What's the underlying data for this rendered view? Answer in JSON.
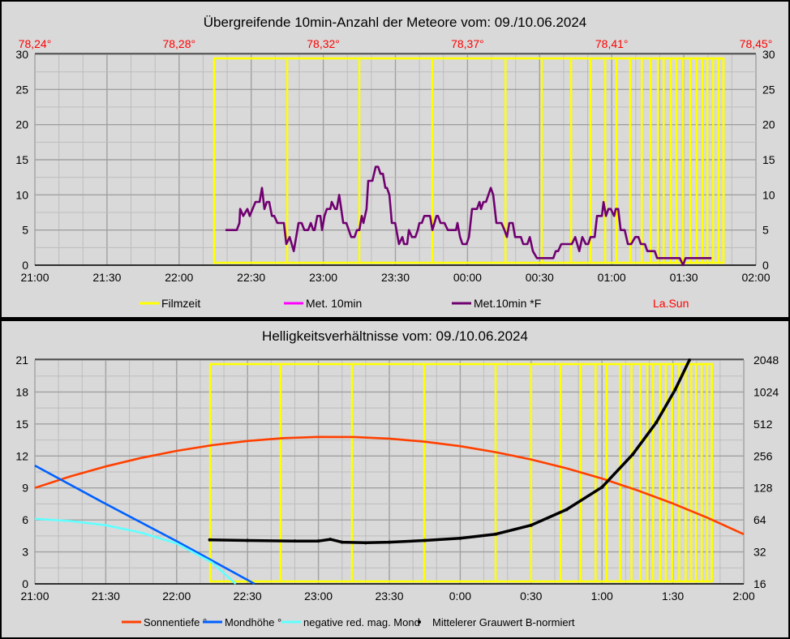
{
  "chart_data": [
    {
      "type": "line",
      "title": "Übergreifende 10min-Anzahl der Meteore vom: 09./10.06.2024",
      "x_unit": "minutes after 21:00",
      "xlim": [
        0,
        300
      ],
      "x_ticks": [
        "21:00",
        "21:30",
        "22:00",
        "22:30",
        "23:00",
        "23:30",
        "00:00",
        "00:30",
        "01:00",
        "01:30",
        "02:00"
      ],
      "top_ticks": [
        "78,24°",
        "78,28°",
        "78,32°",
        "78,37°",
        "78,41°",
        "78,45°"
      ],
      "ylim": [
        0,
        30
      ],
      "y_ticks": [
        "0",
        "5",
        "10",
        "15",
        "20",
        "25",
        "30"
      ],
      "grid": true,
      "legend": {
        "placement": "bottom",
        "items": [
          {
            "label": "Filmzeit",
            "color": "#ffff00"
          },
          {
            "label": "Met. 10min",
            "color": "#ff00ff"
          },
          {
            "label": "Met.10min *F",
            "color": "#700070"
          },
          {
            "label": "La.Sun",
            "color": "#ff0000",
            "text_only": true
          }
        ]
      },
      "film_lines": [
        74.6,
        105.0,
        135.0,
        165.4,
        195.8,
        210.9,
        223.1,
        231.2,
        237.3,
        242.0,
        247.7,
        252.5,
        256.2,
        259.2,
        261.6,
        264.6,
        267.0,
        269.7,
        272.7,
        275.4,
        277.8,
        279.8,
        282.2,
        284.5,
        286.5
      ],
      "series": [
        {
          "name": "Met.10min *F",
          "color": "#700070",
          "t": [
            79.3,
            80.7,
            84.0,
            85.1,
            85.4,
            86.7,
            88.4,
            89.4,
            91.8,
            93.5,
            94.5,
            95.5,
            96.5,
            97.5,
            98.6,
            99.6,
            100.9,
            103.6,
            104.6,
            106.0,
            107.7,
            109.7,
            111.0,
            112.1,
            113.7,
            114.8,
            115.8,
            116.4,
            117.5,
            118.8,
            119.5,
            120.5,
            121.5,
            122.9,
            123.5,
            124.9,
            125.6,
            126.6,
            128.3,
            129.6,
            131.6,
            133.0,
            134.0,
            135.0,
            136.0,
            136.7,
            138.0,
            138.7,
            140.4,
            141.8,
            142.8,
            143.8,
            144.8,
            145.8,
            146.5,
            147.5,
            148.5,
            149.9,
            151.5,
            152.9,
            153.6,
            154.9,
            155.6,
            156.9,
            158.3,
            159.3,
            160.0,
            161.0,
            162.0,
            164.4,
            165.4,
            167.1,
            167.7,
            168.8,
            170.4,
            171.8,
            175.2,
            175.8,
            176.9,
            177.9,
            179.6,
            180.6,
            181.9,
            183.9,
            185.0,
            185.6,
            186.6,
            187.7,
            189.7,
            190.7,
            192.0,
            194.1,
            195.4,
            196.4,
            197.4,
            198.8,
            199.8,
            202.2,
            203.2,
            204.9,
            205.9,
            207.2,
            208.9,
            215.7,
            216.7,
            217.7,
            219.0,
            223.4,
            224.8,
            226.5,
            227.8,
            229.2,
            230.2,
            231.2,
            232.9,
            233.9,
            235.9,
            236.6,
            237.6,
            238.6,
            239.6,
            241.0,
            241.7,
            242.7,
            243.7,
            245.4,
            246.7,
            248.1,
            249.8,
            251.1,
            252.1,
            253.8,
            254.8,
            257.9,
            258.9,
            268.3,
            269.7,
            270.7,
            281.5
          ],
          "values": [
            5,
            5,
            5,
            6,
            8,
            7,
            8,
            7,
            9,
            9,
            11,
            8,
            9,
            9,
            7,
            7,
            6,
            6,
            3,
            4,
            2,
            6,
            6,
            5,
            5,
            6,
            5,
            5,
            7,
            7,
            5,
            7,
            8,
            8,
            9,
            8,
            8,
            10,
            6,
            6,
            4,
            4,
            5,
            5,
            7,
            6,
            8,
            12,
            12,
            14,
            14,
            13,
            13,
            11,
            11,
            10,
            6,
            6,
            3,
            4,
            3,
            3,
            5,
            4,
            4,
            5,
            6,
            6,
            7,
            7,
            5,
            7,
            7,
            6,
            6,
            5,
            5,
            6,
            4,
            3,
            3,
            4,
            8,
            8,
            9,
            8,
            9,
            9,
            11,
            10,
            6,
            6,
            5,
            4,
            6,
            6,
            4,
            4,
            3,
            3,
            4,
            2,
            1,
            1,
            2,
            2,
            3,
            3,
            4,
            2,
            4,
            3,
            3,
            4,
            4,
            7,
            7,
            9,
            7,
            8,
            8,
            7,
            8,
            8,
            5,
            5,
            3,
            3,
            4,
            4,
            3,
            3,
            2,
            2,
            1,
            1,
            0,
            1,
            1
          ]
        }
      ]
    },
    {
      "type": "line",
      "title": "Helligkeitsverhältnisse vom: 09./10.06.2024",
      "x_unit": "minutes after 21:00",
      "xlim": [
        0,
        300
      ],
      "x_ticks": [
        "21:00",
        "21:30",
        "22:00",
        "22:30",
        "23:00",
        "23:30",
        "0:00",
        "0:30",
        "1:00",
        "1:30",
        "2:00"
      ],
      "ylim": [
        0,
        21
      ],
      "y_ticks": [
        "0",
        "3",
        "6",
        "9",
        "12",
        "15",
        "18",
        "21"
      ],
      "y2_scale": "log2",
      "y2lim": [
        16,
        2048
      ],
      "y2_ticks": [
        "16",
        "32",
        "64",
        "128",
        "256",
        "512",
        "1024",
        "2048"
      ],
      "grid": true,
      "legend": {
        "placement": "bottom",
        "items": [
          {
            "label": "Sonnentiefe °",
            "color": "#ff4000"
          },
          {
            "label": "Mondhöhe °",
            "color": "#0060ff"
          },
          {
            "label": "negative red. mag. Mond",
            "color": "#60ffff"
          },
          {
            "label": "Mittelerer Grauwert B-normiert",
            "color": "#000000",
            "marker": "dot"
          }
        ]
      },
      "film_lines": [
        74.2,
        104.0,
        134.2,
        164.8,
        195.0,
        210.0,
        222.5,
        231.0,
        237.3,
        242.0,
        247.7,
        252.5,
        256.2,
        259.2,
        261.6,
        264.6,
        267.0,
        269.7,
        272.7,
        275.4,
        277.8,
        279.8,
        282.2,
        284.5,
        286.5
      ],
      "series": [
        {
          "name": "Sonnentiefe °",
          "color": "#ff4000",
          "axis": "left",
          "t": [
            0,
            15,
            30,
            45,
            60,
            75,
            90,
            105,
            120,
            135,
            150,
            165,
            180,
            195,
            210,
            225,
            240,
            255,
            270,
            285,
            300
          ],
          "values": [
            9.0,
            10.08,
            11.02,
            11.82,
            12.48,
            13.01,
            13.41,
            13.67,
            13.79,
            13.78,
            13.63,
            13.34,
            12.92,
            12.36,
            11.67,
            10.84,
            9.88,
            8.77,
            7.54,
            6.17,
            4.66
          ]
        },
        {
          "name": "Mondhöhe °",
          "color": "#0060ff",
          "axis": "left",
          "t": [
            0,
            30,
            60,
            93
          ],
          "values": [
            11.1,
            7.5,
            4.0,
            0
          ]
        },
        {
          "name": "negative red. mag. Mond",
          "color": "#60ffff",
          "axis": "left",
          "t": [
            0,
            15,
            30,
            45,
            60,
            75,
            85
          ],
          "values": [
            6.1,
            5.9,
            5.5,
            4.8,
            3.8,
            2.0,
            0
          ]
        },
        {
          "name": "Mittelerer Grauwert B-normiert",
          "color": "#000000",
          "axis": "right",
          "t": [
            74,
            90,
            110,
            120,
            125,
            130,
            140,
            150,
            165,
            180,
            195,
            210,
            225,
            240,
            253,
            263,
            271,
            277
          ],
          "values": [
            41.5,
            41,
            40.5,
            40.5,
            42,
            39.5,
            39,
            39.5,
            41,
            43,
            47,
            57,
            80,
            130,
            265,
            530,
            1080,
            2048
          ]
        }
      ]
    }
  ]
}
